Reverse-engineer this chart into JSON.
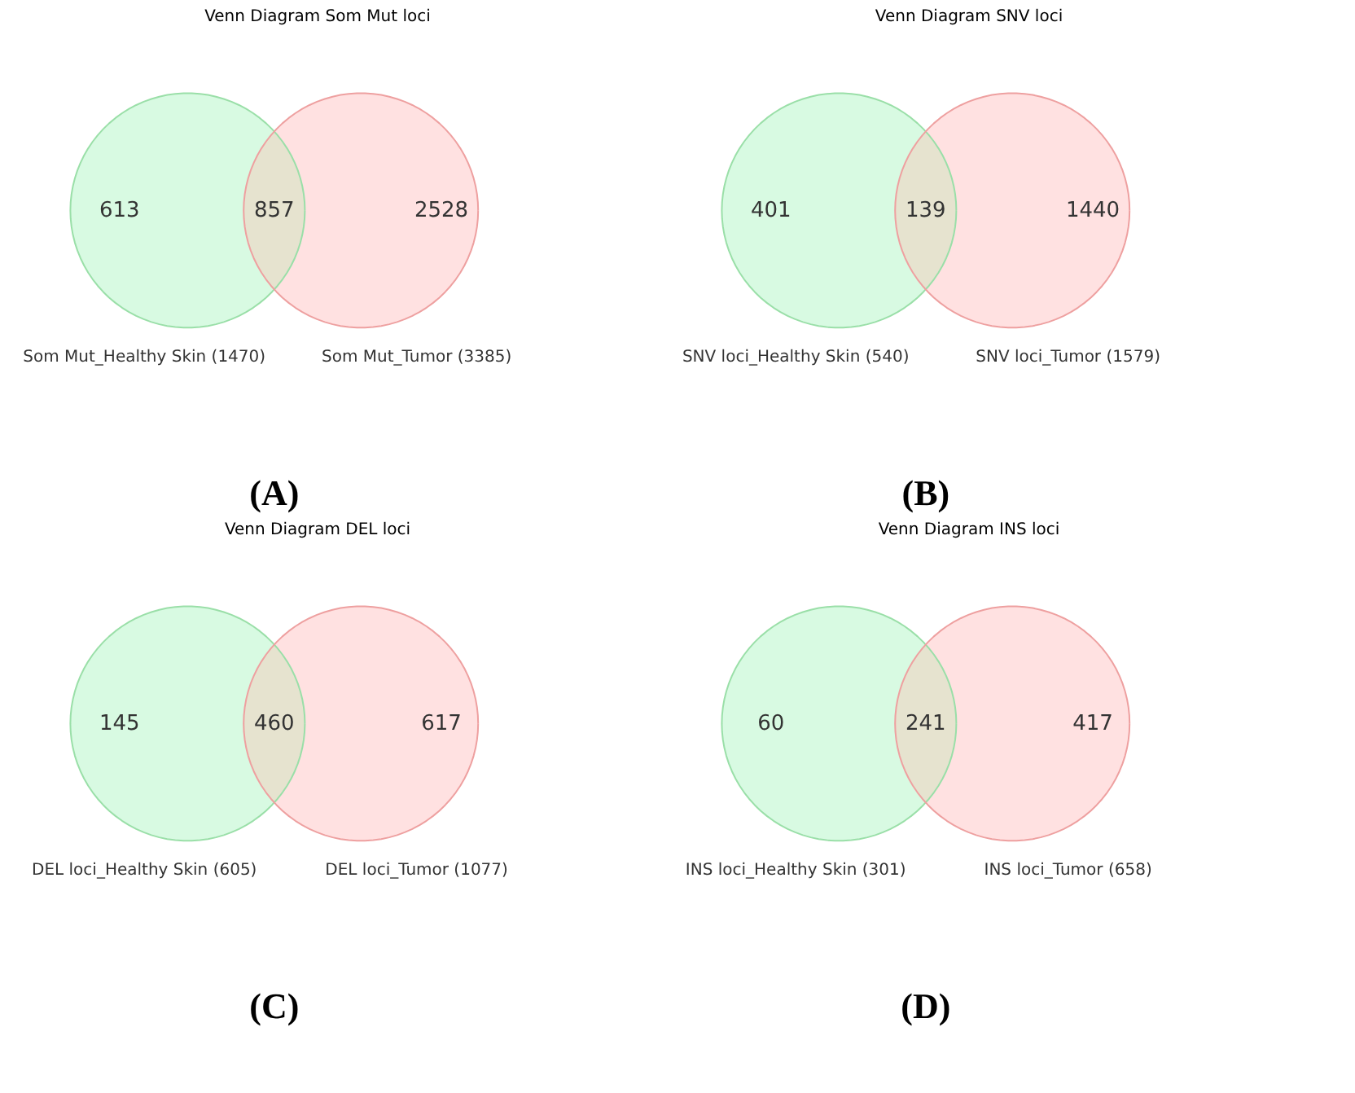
{
  "chart_data": [
    {
      "type": "other",
      "title": "Venn Diagram Som Mut loci",
      "categories": [
        null,
        null,
        null
      ],
      "values": [
        613,
        857,
        2528
      ],
      "colors": [
        "#d8fae2",
        "#e6e3cf",
        "#ffe1e1"
      ],
      "data_labels": true,
      "annotations": [
        "Som Mut_Healthy Skin (1470)",
        "Som Mut_Tumor (3385)",
        "(A)"
      ]
    },
    {
      "type": "other",
      "title": "Venn Diagram SNV loci",
      "categories": [
        null,
        null,
        null
      ],
      "values": [
        401,
        139,
        1440
      ],
      "colors": [
        "#d8fae2",
        "#e6e3cf",
        "#ffe1e1"
      ],
      "data_labels": true,
      "annotations": [
        "SNV loci_Healthy Skin (540)",
        "SNV loci_Tumor (1579)",
        "(B)"
      ]
    },
    {
      "type": "other",
      "title": "Venn Diagram DEL loci",
      "categories": [
        null,
        null,
        null
      ],
      "values": [
        145,
        460,
        617
      ],
      "colors": [
        "#d8fae2",
        "#e6e3cf",
        "#ffe1e1"
      ],
      "data_labels": true,
      "annotations": [
        "DEL loci_Healthy Skin (605)",
        "DEL loci_Tumor (1077)",
        "(C)"
      ]
    },
    {
      "type": "other",
      "title": "Venn Diagram INS loci",
      "categories": [
        null,
        null,
        null
      ],
      "values": [
        60,
        241,
        417
      ],
      "colors": [
        "#d8fae2",
        "#e6e3cf",
        "#ffe1e1"
      ],
      "data_labels": true,
      "annotations": [
        "INS loci_Healthy Skin (301)",
        "INS loci_Tumor (658)",
        "(D)"
      ]
    }
  ]
}
